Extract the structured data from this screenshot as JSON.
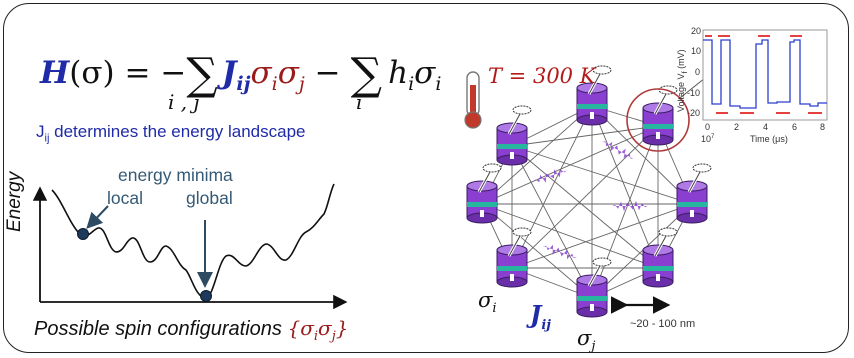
{
  "equation": {
    "lhs": "H",
    "arg": "(σ) = −",
    "coupling": "J",
    "coupling_sub": "ij",
    "pair": "σ",
    "pair_i": "i",
    "pair_j": "j",
    "minus": " −",
    "field": "h",
    "field_sub": "i",
    "field_spin": "σ",
    "field_spin_sub": "i",
    "sum1_sub": "i , j",
    "sum2_sub": "i"
  },
  "landscape": {
    "caption_prefix": "J",
    "caption_sub": "ij",
    "caption_rest": " determines the energy landscape",
    "minima_label": "energy minima",
    "local_label": "local",
    "global_label": "global",
    "y_axis": "Energy",
    "x_axis": "Possible spin configurations ",
    "x_axis_set": "{σ",
    "x_axis_i": "i",
    "x_axis_mid": "σ",
    "x_axis_j": "j",
    "x_axis_close": "}"
  },
  "network": {
    "temperature": "T = 300 K",
    "sigma_i": "σ",
    "sigma_i_sub": "i",
    "sigma_j": "σ",
    "sigma_j_sub": "j",
    "coupling": "J",
    "coupling_sub": "ij",
    "size": "~20 - 100 nm"
  },
  "inset": {
    "y_label": "Voltage V",
    "y_label_sub": "f",
    "y_unit": " (mV)",
    "x_label": "Time (μs)",
    "y_ticks": [
      "20",
      "10",
      "0",
      "-10",
      "-20"
    ],
    "x_ticks": [
      "0",
      "2",
      "4",
      "6",
      "8"
    ],
    "x_exp": "10",
    "x_exp_sup": "7"
  },
  "colors": {
    "blue": "#1f2ba8",
    "red": "#9a1b1b",
    "purple": "#8a3fd1",
    "teal": "#27b7a0",
    "minima_text": "#355a75"
  }
}
